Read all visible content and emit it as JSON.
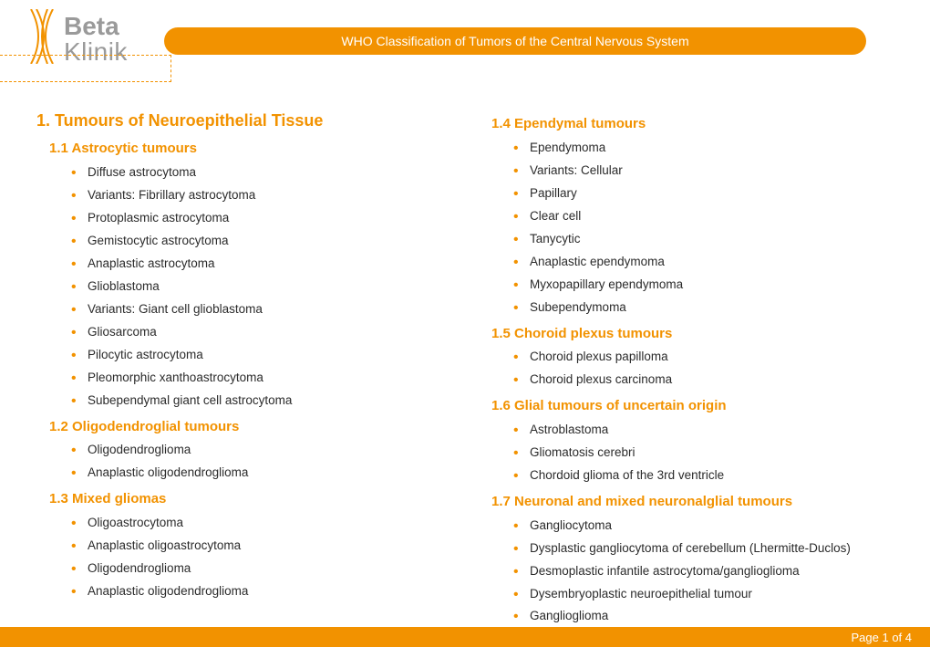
{
  "brand": {
    "line1": "Beta",
    "line2": "Klinik"
  },
  "title": "WHO Classification of Tumors of the Central Nervous System",
  "footer": "Page 1 of 4",
  "colors": {
    "accent": "#f29200",
    "text": "#2b2b2b",
    "muted": "#9a9a9a",
    "background": "#ffffff"
  },
  "left": {
    "h1": "1. Tumours of Neuroepithelial Tissue",
    "sections": [
      {
        "heading": "1.1 Astrocytic tumours",
        "items": [
          "Diffuse astrocytoma",
          "Variants: Fibrillary astrocytoma",
          "Protoplasmic astrocytoma",
          "Gemistocytic astrocytoma",
          "Anaplastic astrocytoma",
          "Glioblastoma",
          "Variants: Giant cell glioblastoma",
          "Gliosarcoma",
          "Pilocytic astrocytoma",
          "Pleomorphic xanthoastrocytoma",
          "Subependymal giant cell astrocytoma"
        ]
      },
      {
        "heading": "1.2 Oligodendroglial tumours",
        "items": [
          "Oligodendroglioma",
          "Anaplastic oligodendroglioma"
        ]
      },
      {
        "heading": "1.3 Mixed gliomas",
        "items": [
          "Oligoastrocytoma",
          "Anaplastic oligoastrocytoma",
          "Oligodendroglioma",
          "Anaplastic oligodendroglioma"
        ]
      }
    ]
  },
  "right": {
    "sections": [
      {
        "heading": "1.4 Ependymal tumours",
        "items": [
          "Ependymoma",
          "Variants: Cellular",
          "Papillary",
          "Clear cell",
          "Tanycytic",
          "Anaplastic ependymoma",
          "Myxopapillary ependymoma",
          "Subependymoma"
        ]
      },
      {
        "heading": "1.5 Choroid plexus tumours",
        "items": [
          "Choroid plexus papilloma",
          "Choroid plexus carcinoma"
        ]
      },
      {
        "heading": "1.6 Glial tumours of uncertain origin",
        "items": [
          "Astroblastoma",
          "Gliomatosis cerebri",
          "Chordoid glioma of the 3rd ventricle"
        ]
      },
      {
        "heading": "1.7 Neuronal and mixed neuronalglial tumours",
        "items": [
          "Gangliocytoma",
          "Dysplastic gangliocytoma of cerebellum (Lhermitte-Duclos)",
          "Desmoplastic infantile astrocytoma/ganglioglioma",
          "Dysembryoplastic neuroepithelial tumour",
          "Ganglioglioma"
        ]
      }
    ]
  }
}
